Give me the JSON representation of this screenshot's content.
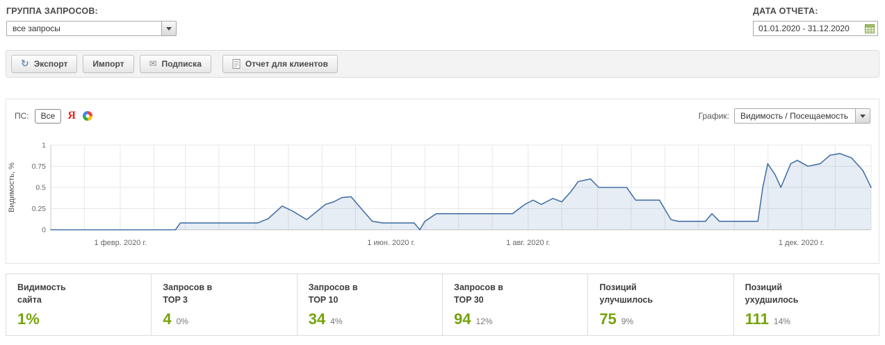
{
  "header": {
    "group_label": "ГРУППА ЗАПРОСОВ:",
    "group_value": "все запросы",
    "date_label": "ДАТА ОТЧЕТА:",
    "date_value": "01.01.2020 - 31.12.2020"
  },
  "toolbar": {
    "export_label": "Экспорт",
    "import_label": "Импорт",
    "subscribe_label": "Подписка",
    "client_report_label": "Отчет для клиентов",
    "refresh_glyph": "↻",
    "envelope_glyph": "✉"
  },
  "engines": {
    "label": "ПС:",
    "all_label": "Все",
    "yandex_glyph": "Я"
  },
  "chart_select": {
    "label": "График:",
    "value": "Видимость / Посещаемость"
  },
  "chart_data": {
    "type": "area",
    "title": "",
    "xlabel": "",
    "ylabel": "Видимость, %",
    "ylim": [
      0,
      1
    ],
    "yticks": [
      0,
      0.25,
      0.5,
      0.75,
      1
    ],
    "grid": true,
    "legend": false,
    "x_range_days": 366,
    "xticks": [
      {
        "label": "1 февр. 2020 г.",
        "pos": 8.5
      },
      {
        "label": "1 июн. 2020 г.",
        "pos": 41.5
      },
      {
        "label": "1 авг. 2020 г.",
        "pos": 58.2
      },
      {
        "label": "1 дек. 2020 г.",
        "pos": 91.5
      }
    ],
    "series_name": "Видимость, %",
    "line_color": "#4572a7",
    "fill_color": "rgba(69,114,167,0.13)",
    "points": [
      [
        0,
        0
      ],
      [
        15.2,
        0
      ],
      [
        15.8,
        0.08
      ],
      [
        25.2,
        0.08
      ],
      [
        26.5,
        0.13
      ],
      [
        28.2,
        0.28
      ],
      [
        29.5,
        0.22
      ],
      [
        31.2,
        0.12
      ],
      [
        33.5,
        0.3
      ],
      [
        34.5,
        0.33
      ],
      [
        35.5,
        0.38
      ],
      [
        36.6,
        0.39
      ],
      [
        38.3,
        0.2
      ],
      [
        39.2,
        0.1
      ],
      [
        40.5,
        0.08
      ],
      [
        44.3,
        0.08
      ],
      [
        45.0,
        0.0
      ],
      [
        45.6,
        0.1
      ],
      [
        47.0,
        0.19
      ],
      [
        56.3,
        0.19
      ],
      [
        57.8,
        0.3
      ],
      [
        58.8,
        0.35
      ],
      [
        59.8,
        0.3
      ],
      [
        61.2,
        0.37
      ],
      [
        62.3,
        0.33
      ],
      [
        63.4,
        0.45
      ],
      [
        64.3,
        0.57
      ],
      [
        65.8,
        0.6
      ],
      [
        66.8,
        0.5
      ],
      [
        70.2,
        0.5
      ],
      [
        71.3,
        0.35
      ],
      [
        74.2,
        0.35
      ],
      [
        75.6,
        0.12
      ],
      [
        76.5,
        0.1
      ],
      [
        79.8,
        0.1
      ],
      [
        80.6,
        0.19
      ],
      [
        81.5,
        0.1
      ],
      [
        86.2,
        0.1
      ],
      [
        86.8,
        0.5
      ],
      [
        87.4,
        0.78
      ],
      [
        88.3,
        0.65
      ],
      [
        89.0,
        0.5
      ],
      [
        90.2,
        0.78
      ],
      [
        91.0,
        0.82
      ],
      [
        92.3,
        0.75
      ],
      [
        93.8,
        0.78
      ],
      [
        95.0,
        0.88
      ],
      [
        96.2,
        0.9
      ],
      [
        97.6,
        0.85
      ],
      [
        99.0,
        0.7
      ],
      [
        100,
        0.5
      ]
    ]
  },
  "stats": [
    {
      "label": "Видимость\nсайта",
      "value": "1%",
      "sub": ""
    },
    {
      "label": "Запросов в\nTOP 3",
      "value": "4",
      "sub": "0%"
    },
    {
      "label": "Запросов в\nTOP 10",
      "value": "34",
      "sub": "4%"
    },
    {
      "label": "Запросов в\nTOP 30",
      "value": "94",
      "sub": "12%"
    },
    {
      "label": "Позиций\nулучшилось",
      "value": "75",
      "sub": "9%"
    },
    {
      "label": "Позиций\nухудшилось",
      "value": "111",
      "sub": "14%"
    }
  ]
}
